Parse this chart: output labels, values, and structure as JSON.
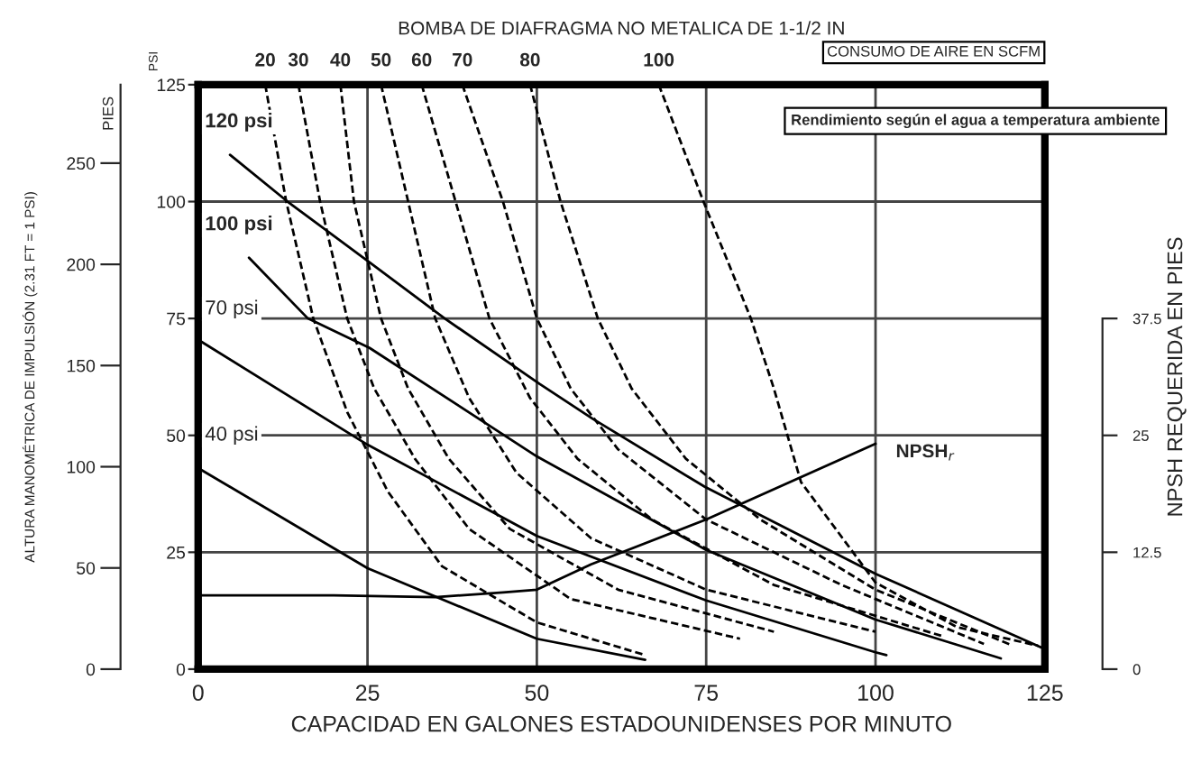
{
  "chart_data": {
    "type": "line",
    "title": "BOMBA DE DIAFRAGMA NO METALICA DE 1-1/2 IN",
    "xlabel": "CAPACIDAD EN GALONES ESTADOUNIDENSES POR MINUTO",
    "ylabel": "PSI",
    "y2label": "NPSH REQUERIDA EN PIES",
    "y3label": "ALTURA MANOMÉTRICA DE IMPULSIÓN (2.31 FT = 1 PSI)",
    "annotations": [
      "PIES",
      "CONSUMO DE AIRE EN SCFM",
      "Rendimiento según el agua a temperatura ambiente"
    ],
    "xlim": [
      0,
      125
    ],
    "xticks": [
      0,
      25,
      50,
      75,
      100,
      125
    ],
    "ylim": [
      0,
      125
    ],
    "yticks": [
      0,
      25,
      50,
      75,
      100,
      125
    ],
    "y2lim": [
      0,
      62.5
    ],
    "y2ticks": [
      0,
      12.5,
      25,
      37.5
    ],
    "y3lim": [
      0,
      288.75
    ],
    "y3ticks": [
      0,
      50,
      100,
      150,
      200,
      250
    ],
    "grid": true,
    "legend": false,
    "series": [
      {
        "name": "120 psi",
        "color": "#000000",
        "line_style": "solid",
        "x": [
          4.7,
          13.2,
          25.3,
          36.4,
          50.4,
          58.2,
          74.8,
          100,
          124.5
        ],
        "values": [
          110,
          100,
          87,
          75,
          61,
          53.6,
          39,
          20.4,
          4.6
        ]
      },
      {
        "name": "100 psi",
        "color": "#000000",
        "line_style": "solid",
        "x": [
          7.5,
          16.2,
          25.3,
          50,
          75,
          100,
          118.5
        ],
        "values": [
          88,
          75,
          68.7,
          45.5,
          25.5,
          10.6,
          2.3
        ]
      },
      {
        "name": "70 psi",
        "color": "#000000",
        "line_style": "solid",
        "x": [
          0.5,
          25,
          50,
          75,
          100,
          101.6
        ],
        "values": [
          70,
          48,
          28.5,
          14.7,
          3.6,
          3
        ]
      },
      {
        "name": "40 psi",
        "color": "#000000",
        "line_style": "solid",
        "x": [
          0,
          25,
          50,
          66
        ],
        "values": [
          43,
          21.6,
          6.5,
          2
        ]
      },
      {
        "name": "NPSH$_{r}$",
        "color": "#000000",
        "line_style": "solid",
        "axis": "y2",
        "x": [
          0,
          20,
          35,
          45,
          50,
          58,
          75,
          100
        ],
        "values": [
          7.9,
          7.9,
          7.7,
          8.2,
          8.5,
          11.2,
          16,
          24.1
        ]
      },
      {
        "name": "20",
        "color": "#000000",
        "line_style": "dashed",
        "x": [
          9.9,
          13,
          17,
          22,
          28,
          36,
          50,
          66
        ],
        "values": [
          125,
          100,
          75,
          55,
          38,
          22,
          10,
          3
        ]
      },
      {
        "name": "30",
        "color": "#000000",
        "line_style": "dashed",
        "x": [
          14.8,
          18,
          22,
          26,
          32,
          40,
          55,
          80
        ],
        "values": [
          125,
          100,
          75,
          60,
          45,
          30,
          15,
          6.5
        ]
      },
      {
        "name": "40",
        "color": "#000000",
        "line_style": "dashed",
        "x": [
          21,
          23,
          27,
          31,
          37,
          46,
          62,
          85
        ],
        "values": [
          125,
          100,
          75,
          60,
          45,
          30,
          17,
          8
        ]
      },
      {
        "name": "50",
        "color": "#000000",
        "line_style": "dashed",
        "x": [
          27,
          31,
          35,
          40,
          47,
          58,
          75,
          100
        ],
        "values": [
          125,
          100,
          75,
          58,
          42,
          28,
          17,
          8
        ]
      },
      {
        "name": "60",
        "color": "#000000",
        "line_style": "dashed",
        "x": [
          33,
          38,
          43,
          49,
          56,
          67,
          85,
          110
        ],
        "values": [
          125,
          100,
          75,
          58,
          45,
          32,
          18,
          7
        ]
      },
      {
        "name": "70",
        "color": "#000000",
        "line_style": "dashed",
        "x": [
          39,
          45,
          50,
          55,
          62,
          75,
          95,
          116
        ],
        "values": [
          125,
          100,
          75,
          60,
          47,
          32,
          18,
          5.4
        ]
      },
      {
        "name": "80",
        "color": "#000000",
        "line_style": "dashed",
        "x": [
          49,
          53.5,
          59,
          64,
          72,
          83,
          100,
          120
        ],
        "values": [
          125,
          100,
          75,
          60,
          45,
          32,
          17,
          5.2
        ]
      },
      {
        "name": "100",
        "color": "#000000",
        "line_style": "dashed",
        "x": [
          68,
          74.6,
          81.6,
          85,
          89,
          100,
          112,
          124
        ],
        "values": [
          125,
          100,
          75,
          60,
          40,
          18.5,
          9,
          5
        ]
      }
    ]
  }
}
